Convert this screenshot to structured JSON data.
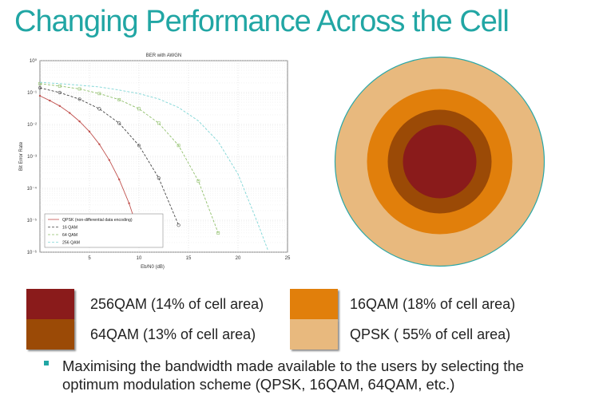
{
  "title": "Changing Performance Across the Cell",
  "chart_data": {
    "type": "line",
    "title": "BER with AWGN",
    "xlabel": "Eb/N0 (dB)",
    "ylabel": "Bit Error Rate",
    "xlim": [
      0,
      25
    ],
    "ylim_exponent": [
      -6,
      0
    ],
    "log_scale_y": true,
    "grid": true,
    "legend_position": "bottom-left",
    "x_ticks": [
      "5",
      "10",
      "15",
      "20",
      "25"
    ],
    "y_ticks": [
      "10⁰",
      "10⁻¹",
      "10⁻²",
      "10⁻³",
      "10⁻⁴",
      "10⁻⁵",
      "10⁻⁶"
    ],
    "series": [
      {
        "name": "QPSK (non-differential data encoding)",
        "color": "#c0504d",
        "marker": "*",
        "x": [
          0,
          1,
          2,
          3,
          4,
          5,
          6,
          7,
          8,
          9,
          10
        ],
        "y": [
          0.079,
          0.056,
          0.038,
          0.023,
          0.0125,
          0.006,
          0.0024,
          0.00077,
          0.00019,
          3.4e-05,
          3.9e-06
        ]
      },
      {
        "name": "16 QAM",
        "color": "#444444",
        "marker": "o",
        "x": [
          0,
          2,
          4,
          6,
          8,
          10,
          12,
          14
        ],
        "y": [
          0.14,
          0.1,
          0.062,
          0.031,
          0.011,
          0.0022,
          0.00021,
          7e-06
        ]
      },
      {
        "name": "64 QAM",
        "color": "#8fbf6a",
        "marker": "s",
        "x": [
          0,
          2,
          4,
          6,
          8,
          10,
          12,
          14,
          16,
          18
        ],
        "y": [
          0.19,
          0.16,
          0.13,
          0.093,
          0.06,
          0.031,
          0.011,
          0.0022,
          0.00017,
          4e-06
        ]
      },
      {
        "name": "256 QAM",
        "color": "#7fd6d6",
        "marker": "-",
        "x": [
          0,
          2,
          4,
          6,
          8,
          10,
          12,
          14,
          16,
          18,
          20,
          22,
          23
        ],
        "y": [
          0.21,
          0.19,
          0.17,
          0.15,
          0.12,
          0.093,
          0.063,
          0.034,
          0.013,
          0.0029,
          0.00028,
          8e-06,
          1.2e-06
        ]
      }
    ]
  },
  "cell": {
    "rings": [
      {
        "label": "QPSK",
        "color": "#e8b97e"
      },
      {
        "label": "16QAM",
        "color": "#e17f0b"
      },
      {
        "label": "64QAM",
        "color": "#9b4a06"
      },
      {
        "label": "256QAM",
        "color": "#8a1b1b"
      }
    ],
    "outline_color": "#2aa7a7"
  },
  "legend": [
    {
      "label": "256QAM (14% of cell area)",
      "color": "#8a1b1b"
    },
    {
      "label": "16QAM (18% of cell area)",
      "color": "#e17f0b"
    },
    {
      "label": "64QAM (13% of cell area)",
      "color": "#9b4a06"
    },
    {
      "label": "QPSK ( 55% of cell area)",
      "color": "#e8b97e"
    }
  ],
  "bullet": {
    "text": "Maximising the bandwidth made available to the users by selecting the optimum modulation scheme (QPSK, 16QAM, 64QAM, etc.)",
    "marker_color": "#21a6a4"
  }
}
